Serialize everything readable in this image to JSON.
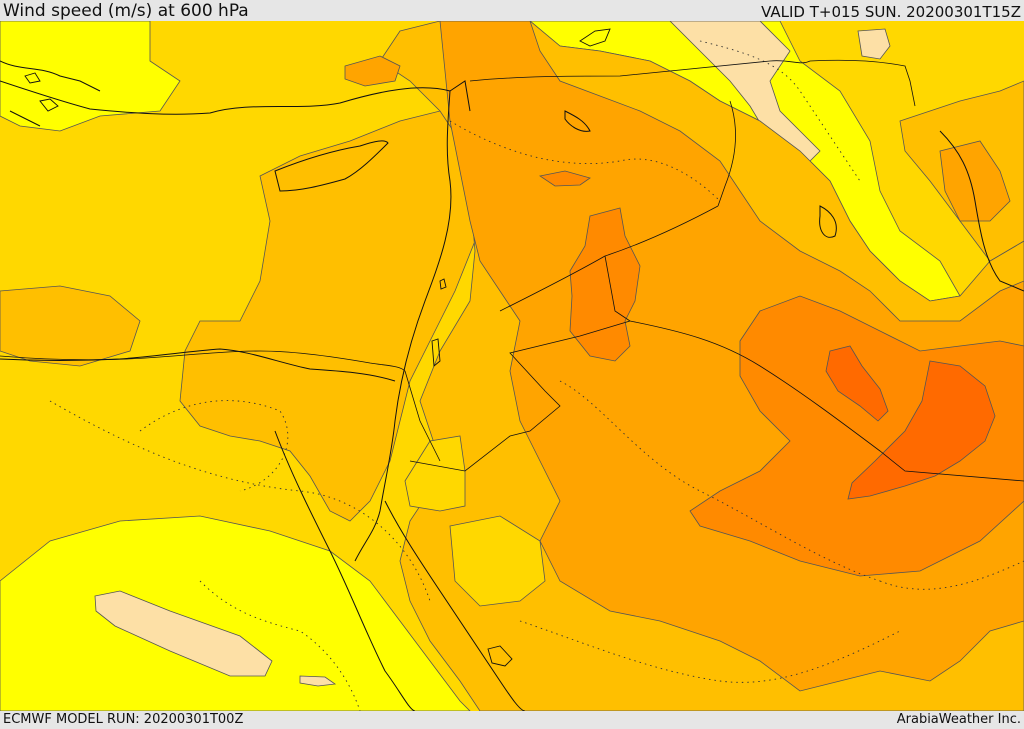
{
  "header": {
    "title": "Wind speed (m/s) at 600 hPa",
    "valid_time": "VALID T+015 SUN. 20200301T15Z"
  },
  "footer": {
    "model_run": "ECMWF MODEL RUN: 20200301T00Z",
    "credit": "ArabiaWeather Inc."
  },
  "palette": {
    "lightest": "#fde0a6",
    "yellow": "#ffff00",
    "gold": "#ffd800",
    "amber": "#ffbf00",
    "orange": "#ffa400",
    "dark_orange": "#ff8a00",
    "deep_orange": "#ff6a00",
    "contour_line": "#555555",
    "border_line": "#111111"
  }
}
